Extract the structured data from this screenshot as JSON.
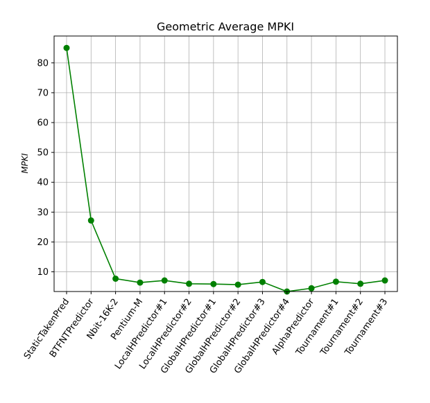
{
  "chart_data": {
    "type": "line",
    "title": "Geometric Average MPKI",
    "xlabel": "",
    "ylabel": "MPKI",
    "categories": [
      "StaticTakenPred",
      "BTFNTPredictor",
      "Nbit-16K-2",
      "Pentium-M",
      "LocalHPredictor#1",
      "LocalHPredictor#2",
      "GlobalHPredictor#1",
      "GlobalHPredictor#2",
      "GlobalHPredictor#3",
      "GlobalHPredictor#4",
      "AlphaPredictor",
      "Tournament#1",
      "Tournament#2",
      "Tournament#3"
    ],
    "series": [
      {
        "values": [
          85.0,
          27.2,
          7.7,
          6.4,
          7.1,
          6.0,
          5.9,
          5.7,
          6.6,
          3.4,
          4.5,
          6.7,
          6.0,
          7.1
        ]
      }
    ],
    "ylim": [
      3.4,
      89.0
    ],
    "yticks": [
      "10",
      "20",
      "30",
      "40",
      "50",
      "60",
      "70",
      "80"
    ],
    "grid": true,
    "line_color": "#008000",
    "marker": "circle"
  }
}
